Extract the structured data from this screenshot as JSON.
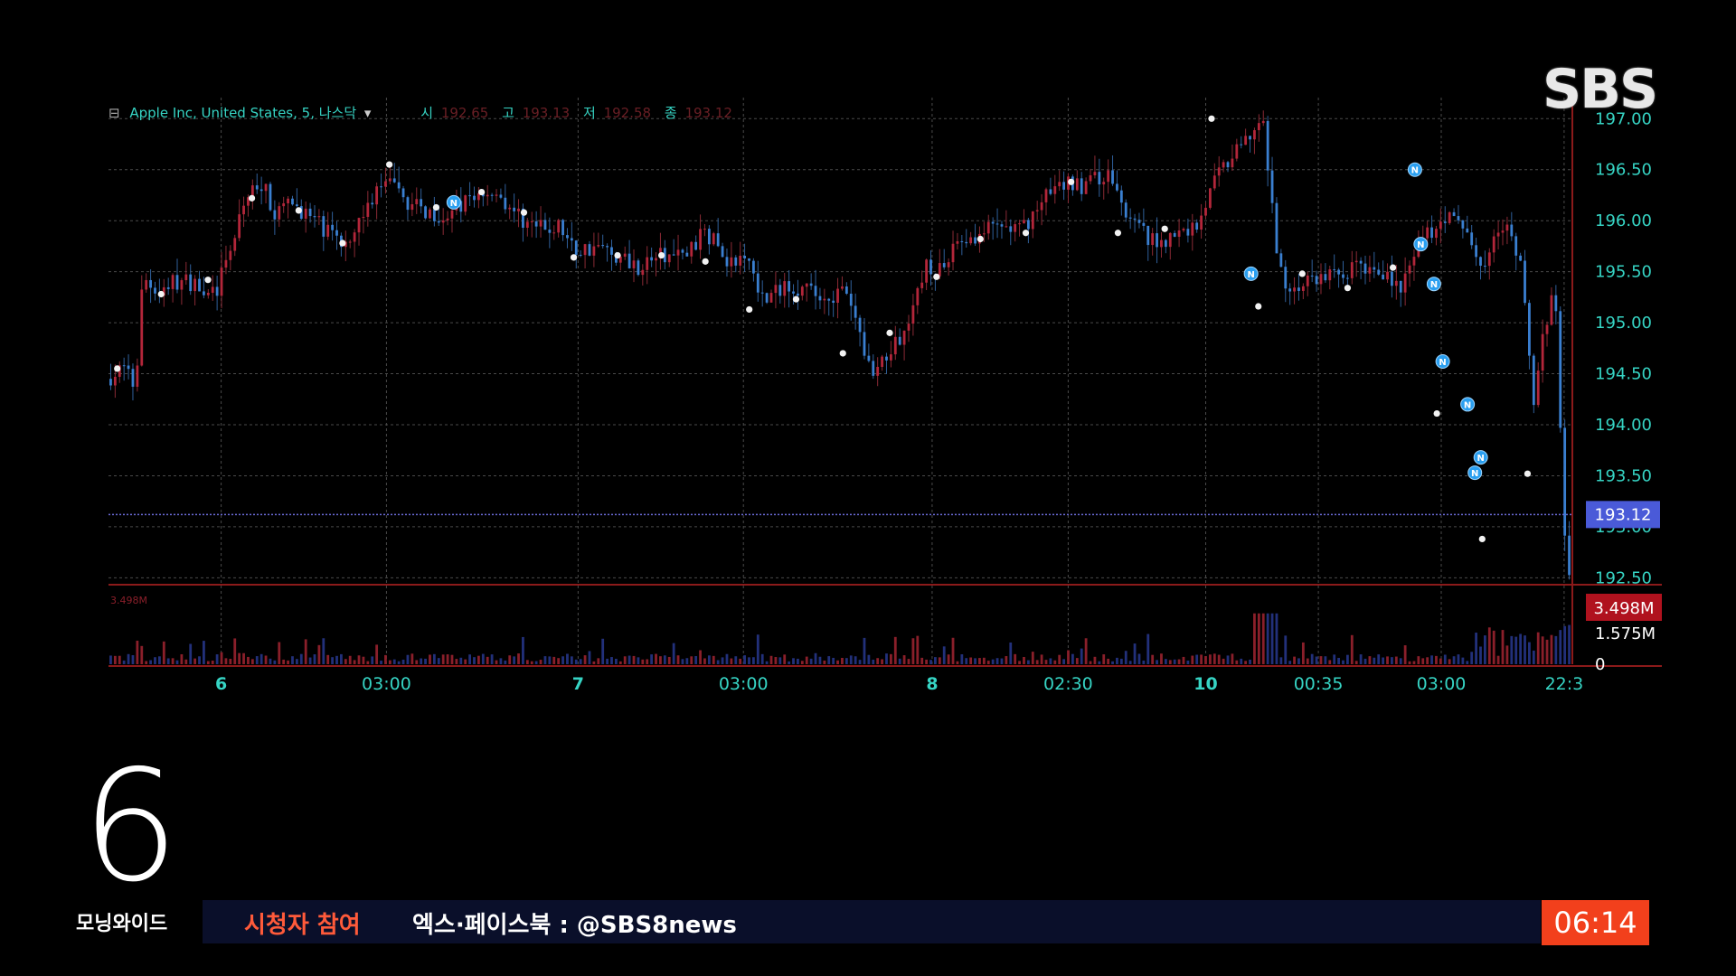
{
  "broadcast": {
    "logo": "SBS",
    "channel_number": "6",
    "program": "모닝와이드",
    "ticker_label": "시청자 참여",
    "ticker_text": "엑스·페이스북 : @SBS8news",
    "clock": "06:14"
  },
  "chart_data": {
    "type": "candlestick",
    "legend": {
      "collapse_glyph": "⊟",
      "symbol": "Apple Inc, United States, 5, 나스닥",
      "dropdown_glyph": "▾",
      "open_label": "시",
      "open_value": "192.65",
      "high_label": "고",
      "high_value": "193.13",
      "low_label": "저",
      "low_value": "192.58",
      "close_label": "종",
      "close_value": "193.12"
    },
    "price_axis": {
      "ticks": [
        "197.00",
        "196.50",
        "196.00",
        "195.50",
        "195.00",
        "194.50",
        "194.00",
        "193.50",
        "193.00",
        "192.50"
      ],
      "ylim": [
        192.45,
        197.1
      ]
    },
    "last_price": 193.12,
    "last_price_label": "193.12",
    "volume_axis": {
      "ticks": [
        "1.575M",
        "0"
      ],
      "max_label": "3.498M",
      "max_value": 3.498,
      "corner_label": "3.498M"
    },
    "x_axis": {
      "labels": [
        {
          "text": "6",
          "pos": 0.077,
          "bold": true
        },
        {
          "text": "03:00",
          "pos": 0.19
        },
        {
          "text": "7",
          "pos": 0.321,
          "bold": true
        },
        {
          "text": "03:00",
          "pos": 0.434
        },
        {
          "text": "8",
          "pos": 0.563,
          "bold": true
        },
        {
          "text": "02:30",
          "pos": 0.656
        },
        {
          "text": "10",
          "pos": 0.75,
          "bold": true
        },
        {
          "text": "00:35",
          "pos": 0.827
        },
        {
          "text": "03:00",
          "pos": 0.911
        },
        {
          "text": "22:3",
          "pos": 0.995
        }
      ]
    },
    "path_keypoints": [
      [
        0.0,
        194.45
      ],
      [
        0.012,
        194.55
      ],
      [
        0.02,
        194.35
      ],
      [
        0.025,
        195.45
      ],
      [
        0.035,
        195.3
      ],
      [
        0.045,
        195.4
      ],
      [
        0.06,
        195.4
      ],
      [
        0.075,
        195.3
      ],
      [
        0.085,
        195.7
      ],
      [
        0.095,
        196.2
      ],
      [
        0.105,
        196.4
      ],
      [
        0.115,
        196.1
      ],
      [
        0.13,
        196.15
      ],
      [
        0.15,
        195.9
      ],
      [
        0.16,
        195.75
      ],
      [
        0.175,
        196.05
      ],
      [
        0.19,
        196.4
      ],
      [
        0.2,
        196.25
      ],
      [
        0.215,
        196.1
      ],
      [
        0.235,
        196.05
      ],
      [
        0.25,
        196.25
      ],
      [
        0.265,
        196.3
      ],
      [
        0.285,
        196.0
      ],
      [
        0.3,
        195.9
      ],
      [
        0.31,
        195.95
      ],
      [
        0.32,
        195.7
      ],
      [
        0.335,
        195.75
      ],
      [
        0.35,
        195.65
      ],
      [
        0.365,
        195.55
      ],
      [
        0.375,
        195.65
      ],
      [
        0.395,
        195.65
      ],
      [
        0.41,
        195.9
      ],
      [
        0.425,
        195.6
      ],
      [
        0.44,
        195.6
      ],
      [
        0.45,
        195.2
      ],
      [
        0.465,
        195.4
      ],
      [
        0.48,
        195.3
      ],
      [
        0.49,
        195.25
      ],
      [
        0.505,
        195.3
      ],
      [
        0.515,
        194.9
      ],
      [
        0.525,
        194.4
      ],
      [
        0.535,
        194.75
      ],
      [
        0.55,
        195.0
      ],
      [
        0.56,
        195.6
      ],
      [
        0.568,
        195.45
      ],
      [
        0.58,
        195.8
      ],
      [
        0.595,
        195.85
      ],
      [
        0.61,
        195.95
      ],
      [
        0.625,
        195.9
      ],
      [
        0.64,
        196.2
      ],
      [
        0.655,
        196.35
      ],
      [
        0.67,
        196.35
      ],
      [
        0.685,
        196.45
      ],
      [
        0.7,
        196.0
      ],
      [
        0.715,
        195.8
      ],
      [
        0.73,
        195.85
      ],
      [
        0.745,
        195.95
      ],
      [
        0.76,
        196.45
      ],
      [
        0.775,
        196.7
      ],
      [
        0.785,
        196.9
      ],
      [
        0.79,
        197.0
      ],
      [
        0.795,
        196.4
      ],
      [
        0.8,
        195.6
      ],
      [
        0.81,
        195.3
      ],
      [
        0.82,
        195.4
      ],
      [
        0.83,
        195.45
      ],
      [
        0.845,
        195.5
      ],
      [
        0.86,
        195.55
      ],
      [
        0.875,
        195.5
      ],
      [
        0.885,
        195.3
      ],
      [
        0.9,
        195.8
      ],
      [
        0.915,
        196.05
      ],
      [
        0.93,
        195.9
      ],
      [
        0.94,
        195.55
      ],
      [
        0.955,
        195.95
      ],
      [
        0.965,
        195.7
      ],
      [
        0.97,
        195.2
      ],
      [
        0.975,
        194.1
      ],
      [
        0.98,
        194.7
      ],
      [
        0.985,
        195.0
      ],
      [
        0.99,
        195.4
      ],
      [
        0.993,
        194.5
      ],
      [
        0.996,
        192.9
      ],
      [
        1.0,
        192.6
      ]
    ],
    "series_markers": [
      {
        "x": 0.006,
        "y": 194.55
      },
      {
        "x": 0.036,
        "y": 195.28
      },
      {
        "x": 0.068,
        "y": 195.42
      },
      {
        "x": 0.098,
        "y": 196.22
      },
      {
        "x": 0.13,
        "y": 196.1
      },
      {
        "x": 0.16,
        "y": 195.78
      },
      {
        "x": 0.192,
        "y": 196.55
      },
      {
        "x": 0.224,
        "y": 196.13
      },
      {
        "x": 0.255,
        "y": 196.28
      },
      {
        "x": 0.284,
        "y": 196.08
      },
      {
        "x": 0.318,
        "y": 195.64
      },
      {
        "x": 0.348,
        "y": 195.66
      },
      {
        "x": 0.378,
        "y": 195.66
      },
      {
        "x": 0.408,
        "y": 195.6
      },
      {
        "x": 0.438,
        "y": 195.13
      },
      {
        "x": 0.47,
        "y": 195.23
      },
      {
        "x": 0.502,
        "y": 194.7
      },
      {
        "x": 0.534,
        "y": 194.9
      },
      {
        "x": 0.566,
        "y": 195.45
      },
      {
        "x": 0.596,
        "y": 195.82
      },
      {
        "x": 0.627,
        "y": 195.88
      },
      {
        "x": 0.658,
        "y": 196.38
      },
      {
        "x": 0.69,
        "y": 195.88
      },
      {
        "x": 0.722,
        "y": 195.92
      },
      {
        "x": 0.754,
        "y": 197.0
      },
      {
        "x": 0.786,
        "y": 195.16
      },
      {
        "x": 0.816,
        "y": 195.48
      },
      {
        "x": 0.847,
        "y": 195.34
      },
      {
        "x": 0.878,
        "y": 195.54
      },
      {
        "x": 0.908,
        "y": 194.11
      },
      {
        "x": 0.939,
        "y": 192.88
      },
      {
        "x": 0.97,
        "y": 193.52
      }
    ],
    "news_markers": [
      {
        "x": 0.236,
        "y": 196.18
      },
      {
        "x": 0.781,
        "y": 195.48
      },
      {
        "x": 0.893,
        "y": 196.5
      },
      {
        "x": 0.897,
        "y": 195.77
      },
      {
        "x": 0.906,
        "y": 195.38
      },
      {
        "x": 0.912,
        "y": 194.62
      },
      {
        "x": 0.929,
        "y": 194.2
      },
      {
        "x": 0.934,
        "y": 193.53
      },
      {
        "x": 0.938,
        "y": 193.68
      }
    ],
    "news_marker_glyph": "N",
    "grid": true
  }
}
